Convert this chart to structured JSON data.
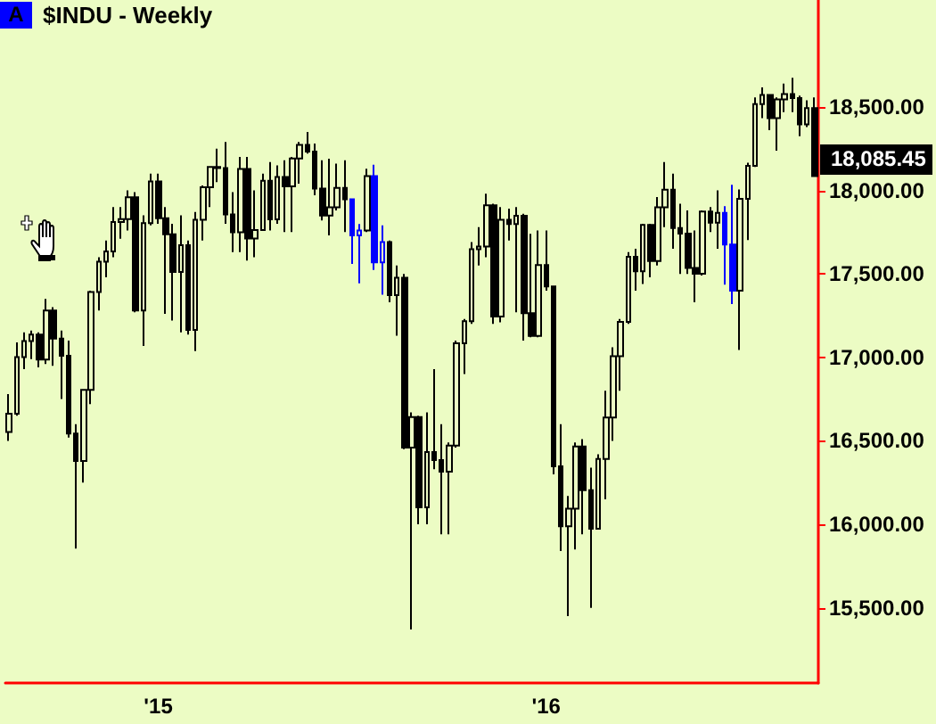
{
  "chart_data": {
    "type": "candlestick",
    "title": "$INDU - Weekly",
    "annotations": [
      "A",
      "18,085.45"
    ],
    "categories": [
      null,
      null,
      null,
      null,
      null,
      null,
      null,
      null,
      null,
      null,
      null,
      null,
      null,
      null,
      null,
      null,
      null,
      null,
      null,
      null,
      "'15",
      null,
      null,
      null,
      null,
      null,
      null,
      null,
      null,
      null,
      null,
      null,
      null,
      null,
      null,
      null,
      null,
      null,
      null,
      null,
      null,
      null,
      null,
      null,
      null,
      null,
      null,
      null,
      null,
      null,
      null,
      null,
      null,
      null,
      null,
      null,
      null,
      null,
      null,
      null,
      null,
      null,
      null,
      null,
      null,
      null,
      null,
      null,
      null,
      null,
      null,
      null,
      "'16",
      null,
      null,
      null,
      null,
      null,
      null,
      null,
      null,
      null,
      null,
      null,
      null,
      null,
      null,
      null,
      null,
      null,
      null,
      null,
      null,
      null,
      null,
      null,
      null,
      null,
      null,
      null,
      null,
      null,
      null,
      null,
      null,
      null,
      null,
      null,
      null
    ],
    "ohlc": [
      [
        16553,
        16780,
        16500,
        16662
      ],
      [
        16662,
        17090,
        16650,
        17001
      ],
      [
        17001,
        17150,
        16930,
        17098
      ],
      [
        17098,
        17160,
        16990,
        17137
      ],
      [
        17137,
        17150,
        16940,
        16987
      ],
      [
        16987,
        17350,
        16960,
        17280
      ],
      [
        17280,
        17300,
        16950,
        17113
      ],
      [
        17113,
        17160,
        16750,
        17009
      ],
      [
        17009,
        17100,
        16520,
        16544
      ],
      [
        16544,
        16600,
        15855,
        16380
      ],
      [
        16380,
        16810,
        16250,
        16805
      ],
      [
        16805,
        17400,
        16720,
        17391
      ],
      [
        17391,
        17600,
        17280,
        17573
      ],
      [
        17573,
        17700,
        17480,
        17634
      ],
      [
        17634,
        17900,
        17600,
        17810
      ],
      [
        17810,
        17900,
        17710,
        17828
      ],
      [
        17828,
        18000,
        17760,
        17958
      ],
      [
        17958,
        17990,
        17270,
        17280
      ],
      [
        17280,
        17850,
        17068,
        17804
      ],
      [
        17804,
        18100,
        17790,
        18053
      ],
      [
        18053,
        18100,
        17800,
        17833
      ],
      [
        17833,
        17900,
        17260,
        17737
      ],
      [
        17737,
        17800,
        17220,
        17512
      ],
      [
        17512,
        17850,
        17150,
        17672
      ],
      [
        17672,
        17700,
        17136,
        17165
      ],
      [
        17165,
        17870,
        17037,
        17824
      ],
      [
        17824,
        18030,
        17700,
        18019
      ],
      [
        18019,
        18140,
        17900,
        18140
      ],
      [
        18140,
        18250,
        18050,
        18133
      ],
      [
        18133,
        18290,
        17800,
        17856
      ],
      [
        17856,
        17990,
        17630,
        17749
      ],
      [
        17749,
        18200,
        17630,
        18128
      ],
      [
        18128,
        18200,
        17580,
        17712
      ],
      [
        17712,
        18000,
        17600,
        17763
      ],
      [
        17763,
        18100,
        17760,
        18057
      ],
      [
        18057,
        18170,
        17760,
        17826
      ],
      [
        17826,
        18150,
        17800,
        18080
      ],
      [
        18080,
        18180,
        17750,
        18024
      ],
      [
        18024,
        18200,
        17750,
        18191
      ],
      [
        18191,
        18290,
        18040,
        18272
      ],
      [
        18272,
        18350,
        18220,
        18232
      ],
      [
        18232,
        18280,
        17970,
        18011
      ],
      [
        18011,
        18180,
        17820,
        17849
      ],
      [
        17849,
        18190,
        17730,
        17898
      ],
      [
        17898,
        18160,
        17880,
        18015
      ],
      [
        18015,
        18180,
        17750,
        17947
      ],
      [
        17947,
        17951,
        17560,
        17730
      ],
      [
        17730,
        17799,
        17443,
        17760
      ],
      [
        17760,
        18130,
        17750,
        18086
      ],
      [
        18086,
        18154,
        17524,
        17569
      ],
      [
        17569,
        17791,
        17375,
        17690
      ],
      [
        17690,
        17700,
        17330,
        17373
      ],
      [
        17373,
        17550,
        17130,
        17477
      ],
      [
        17477,
        17500,
        16450,
        16460
      ],
      [
        16460,
        16670,
        15370,
        16643
      ],
      [
        16643,
        16650,
        16000,
        16102
      ],
      [
        16102,
        16670,
        16000,
        16433
      ],
      [
        16433,
        16930,
        16330,
        16385
      ],
      [
        16385,
        16600,
        15940,
        16315
      ],
      [
        16315,
        16490,
        15940,
        16472
      ],
      [
        16472,
        17100,
        16460,
        17084
      ],
      [
        17084,
        17230,
        16900,
        17216
      ],
      [
        17216,
        17690,
        17200,
        17647
      ],
      [
        17647,
        17780,
        17550,
        17664
      ],
      [
        17664,
        17980,
        17600,
        17910
      ],
      [
        17910,
        17920,
        17200,
        17245
      ],
      [
        17245,
        17900,
        17210,
        17824
      ],
      [
        17824,
        17890,
        17700,
        17798
      ],
      [
        17798,
        17900,
        17270,
        17848
      ],
      [
        17848,
        17860,
        17100,
        17265
      ],
      [
        17265,
        17740,
        17120,
        17128
      ],
      [
        17128,
        17760,
        17120,
        17553
      ],
      [
        17553,
        17760,
        17400,
        17425
      ],
      [
        17425,
        17430,
        16300,
        16347
      ],
      [
        16347,
        16600,
        15840,
        15988
      ],
      [
        15988,
        16170,
        15450,
        16094
      ],
      [
        16094,
        16490,
        15850,
        16466
      ],
      [
        16466,
        16510,
        15940,
        16205
      ],
      [
        16205,
        16340,
        15500,
        15974
      ],
      [
        15974,
        16420,
        15970,
        16392
      ],
      [
        16392,
        16800,
        16150,
        16640
      ],
      [
        16640,
        17060,
        16500,
        17007
      ],
      [
        17007,
        17230,
        16800,
        17213
      ],
      [
        17213,
        17630,
        17200,
        17602
      ],
      [
        17602,
        17650,
        17400,
        17516
      ],
      [
        17516,
        17800,
        17440,
        17793
      ],
      [
        17793,
        17800,
        17480,
        17577
      ],
      [
        17577,
        17960,
        17550,
        17898
      ],
      [
        17898,
        18170,
        17780,
        18004
      ],
      [
        18004,
        18100,
        17650,
        17774
      ],
      [
        17774,
        17920,
        17500,
        17741
      ],
      [
        17741,
        17880,
        17500,
        17535
      ],
      [
        17535,
        17760,
        17330,
        17501
      ],
      [
        17501,
        17880,
        17490,
        17873
      ],
      [
        17873,
        17900,
        17750,
        17807
      ],
      [
        17807,
        18000,
        17650,
        17865
      ],
      [
        17865,
        17905,
        17436,
        17675
      ],
      [
        17675,
        18034,
        17319,
        17400
      ],
      [
        17400,
        18005,
        17044,
        17949
      ],
      [
        17949,
        18165,
        17703,
        18147
      ],
      [
        18147,
        18557,
        18140,
        18517
      ],
      [
        18517,
        18617,
        18432,
        18571
      ],
      [
        18571,
        18575,
        18361,
        18432
      ],
      [
        18432,
        18557,
        18237,
        18544
      ],
      [
        18544,
        18639,
        18468,
        18577
      ],
      [
        18577,
        18674,
        18468,
        18553
      ],
      [
        18553,
        18568,
        18325,
        18395
      ],
      [
        18395,
        18539,
        18379,
        18492
      ],
      [
        18492,
        18557,
        18080,
        18085.45
      ]
    ],
    "colors": [
      "#000000",
      "#000000",
      "#000000",
      "#000000",
      "#000000",
      "#000000",
      "#000000",
      "#000000",
      "#000000",
      "#000000",
      "#000000",
      "#000000",
      "#000000",
      "#000000",
      "#000000",
      "#000000",
      "#000000",
      "#000000",
      "#000000",
      "#000000",
      "#000000",
      "#000000",
      "#000000",
      "#000000",
      "#000000",
      "#000000",
      "#000000",
      "#000000",
      "#000000",
      "#000000",
      "#000000",
      "#000000",
      "#000000",
      "#000000",
      "#000000",
      "#000000",
      "#000000",
      "#000000",
      "#000000",
      "#000000",
      "#000000",
      "#000000",
      "#000000",
      "#000000",
      "#000000",
      "#000000",
      "#0000ff",
      "#0000ff",
      "#000000",
      "#0000ff",
      "#0000ff",
      "#000000",
      "#000000",
      "#000000",
      "#000000",
      "#000000",
      "#000000",
      "#000000",
      "#000000",
      "#000000",
      "#000000",
      "#000000",
      "#000000",
      "#000000",
      "#000000",
      "#000000",
      "#000000",
      "#000000",
      "#000000",
      "#000000",
      "#000000",
      "#000000",
      "#000000",
      "#000000",
      "#000000",
      "#000000",
      "#000000",
      "#000000",
      "#000000",
      "#000000",
      "#000000",
      "#000000",
      "#000000",
      "#000000",
      "#000000",
      "#000000",
      "#000000",
      "#000000",
      "#000000",
      "#000000",
      "#000000",
      "#000000",
      "#000000",
      "#000000",
      "#000000",
      "#000000",
      "#0000ff",
      "#0000ff",
      "#000000",
      "#000000",
      "#000000",
      "#000000",
      "#000000",
      "#000000",
      "#000000",
      "#000000",
      "#000000",
      "#000000",
      "#000000"
    ],
    "ylim": [
      15050,
      19140
    ],
    "yticks": [
      {
        "value": 15500,
        "label": "15,500.00"
      },
      {
        "value": 16000,
        "label": "16,000.00"
      },
      {
        "value": 16500,
        "label": "16,500.00"
      },
      {
        "value": 17000,
        "label": "17,000.00"
      },
      {
        "value": 17500,
        "label": "17,500.00"
      },
      {
        "value": 18000,
        "label": "18,000.00"
      },
      {
        "value": 18500,
        "label": "18,500.00"
      }
    ],
    "grid": false
  }
}
